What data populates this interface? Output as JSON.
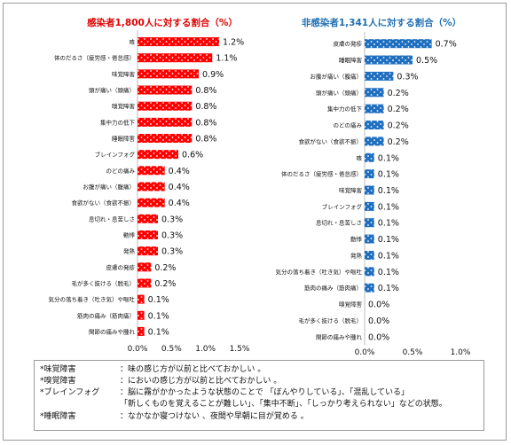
{
  "chart_data": [
    {
      "type": "bar",
      "orientation": "horizontal",
      "title": "感染者1,800人に対する割合（%）",
      "title_color": "#e00000",
      "bar_color": "#ff0000",
      "pattern": "white dots",
      "categories": [
        "咳",
        "体のだるさ（疲労感・倦怠感）",
        "味覚障害",
        "頭が痛い（頭痛）",
        "嗅覚障害",
        "集中力の低下",
        "睡眠障害",
        "ブレインフォグ",
        "のどの痛み",
        "お腹が痛い（腹痛）",
        "食欲がない（食欲不振）",
        "息切れ・息苦しさ",
        "動悸",
        "発熱",
        "皮膚の発疹",
        "毛が多く抜ける（脱毛）",
        "気分の落ち着き（吐き気）や嘔吐",
        "筋肉の痛み（筋肉痛）",
        "関節の痛みや腫れ"
      ],
      "values": [
        1.2,
        1.1,
        0.9,
        0.8,
        0.8,
        0.8,
        0.8,
        0.6,
        0.4,
        0.4,
        0.4,
        0.3,
        0.3,
        0.3,
        0.2,
        0.2,
        0.1,
        0.1,
        0.1
      ],
      "value_labels": [
        "1.2%",
        "1.1%",
        "0.9%",
        "0.8%",
        "0.8%",
        "0.8%",
        "0.8%",
        "0.6%",
        "0.4%",
        "0.4%",
        "0.4%",
        "0.3%",
        "0.3%",
        "0.3%",
        "0.2%",
        "0.2%",
        "0.1%",
        "0.1%",
        "0.1%"
      ],
      "xlim": [
        0,
        1.5
      ],
      "xticks": [
        0,
        0.5,
        1.0,
        1.5
      ],
      "xtick_labels": [
        "0.0%",
        "0.5%",
        "1.0%",
        "1.5%"
      ],
      "grid": false
    },
    {
      "type": "bar",
      "orientation": "horizontal",
      "title": "非感染者1,341人に対する割合（%）",
      "title_color": "#1f6fb2",
      "bar_color": "#1f6fc0",
      "pattern": "white dots",
      "categories": [
        "皮膚の発疹",
        "睡眠障害",
        "お腹が痛い（腹痛）",
        "頭が痛い（頭痛）",
        "集中力の低下",
        "のどの痛み",
        "食欲がない（食欲不振）",
        "咳",
        "体のだるさ（疲労感・倦怠感）",
        "味覚障害",
        "ブレインフォグ",
        "息切れ・息苦しさ",
        "動悸",
        "発熱",
        "気分の落ち着き（吐き気）や嘔吐",
        "筋肉の痛み（筋肉痛）",
        "嗅覚障害",
        "毛が多く抜ける（脱毛）",
        "関節の痛みや腫れ"
      ],
      "values": [
        0.7,
        0.5,
        0.3,
        0.2,
        0.2,
        0.2,
        0.2,
        0.1,
        0.1,
        0.1,
        0.1,
        0.1,
        0.1,
        0.1,
        0.1,
        0.1,
        0.0,
        0.0,
        0.0
      ],
      "value_labels": [
        "0.7%",
        "0.5%",
        "0.3%",
        "0.2%",
        "0.2%",
        "0.2%",
        "0.2%",
        "0.1%",
        "0.1%",
        "0.1%",
        "0.1%",
        "0.1%",
        "0.1%",
        "0.1%",
        "0.1%",
        "0.1%",
        "0.0%",
        "0.0%",
        "0.0%"
      ],
      "xlim": [
        0,
        1.0
      ],
      "xticks": [
        0,
        0.5,
        1.0
      ],
      "xtick_labels": [
        "0.0%",
        "0.5%",
        "1.0%"
      ],
      "grid": false
    }
  ],
  "notes": [
    {
      "term": "*味覚障害",
      "desc": "：味の感じ方が以前と比べておかしい 。"
    },
    {
      "term": "*嗅覚障害",
      "desc": "：においの感じ方が以前と比べておかしい 。"
    },
    {
      "term": "*ブレインフォグ",
      "desc": "：脳に霧がかかったような状態のことで 「ぼんやりしている」、「混乱している」"
    },
    {
      "term": "",
      "desc": "「新しくものを覚えることが難しい」、「集中不断」、「しっかり考えられない」などの状態。"
    },
    {
      "term": "*睡眠障害",
      "desc": "：なかなか寝つけない 、夜間や早朝に目が覚める 。"
    }
  ]
}
